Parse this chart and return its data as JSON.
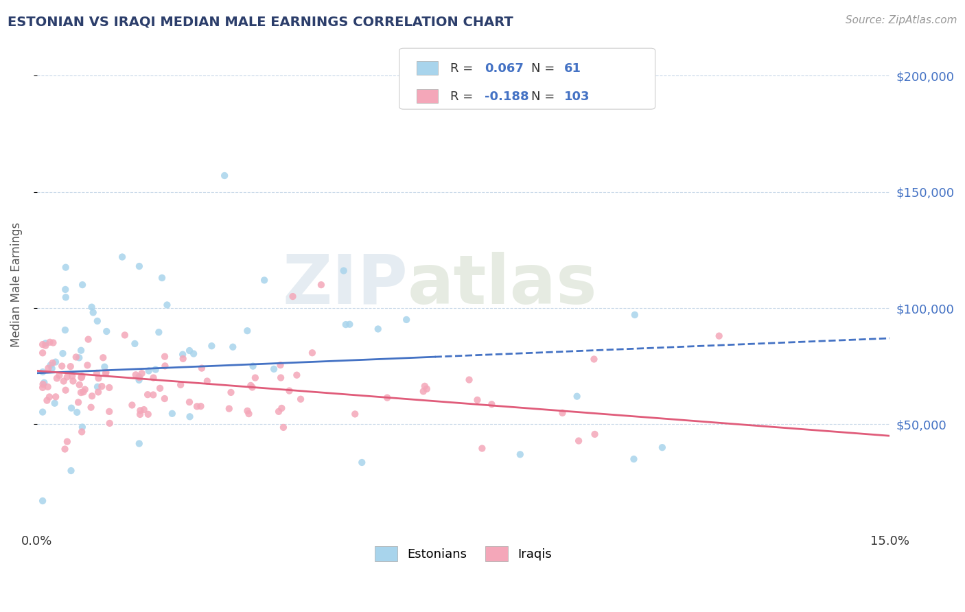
{
  "title": "ESTONIAN VS IRAQI MEDIAN MALE EARNINGS CORRELATION CHART",
  "source": "Source: ZipAtlas.com",
  "ylabel": "Median Male Earnings",
  "watermark_zip": "ZIP",
  "watermark_atlas": "atlas",
  "estonian_label": "Estonians",
  "iraqi_label": "Iraqis",
  "legend_r1_text": "R = ",
  "legend_r1_val": "0.067",
  "legend_n1_text": "N = ",
  "legend_n1_val": "61",
  "legend_r2_text": "R = ",
  "legend_r2_val": "-0.188",
  "legend_n2_text": "N = ",
  "legend_n2_val": "103",
  "estonian_color": "#a8d4ec",
  "iraqi_color": "#f4a7b9",
  "estonian_trend_color": "#4472c4",
  "iraqi_trend_color": "#e05c7a",
  "title_color": "#2c3e6b",
  "value_color": "#4472c4",
  "text_color": "#333333",
  "ytick_color": "#4472c4",
  "grid_color": "#c8d8e8",
  "background_color": "#ffffff",
  "xmin": 0.0,
  "xmax": 0.15,
  "ymin": 5000,
  "ymax": 215000,
  "ytick_vals": [
    50000,
    100000,
    150000,
    200000
  ],
  "ytick_labels": [
    "$50,000",
    "$100,000",
    "$150,000",
    "$200,000"
  ],
  "figwidth": 14.06,
  "figheight": 8.92,
  "dpi": 100
}
